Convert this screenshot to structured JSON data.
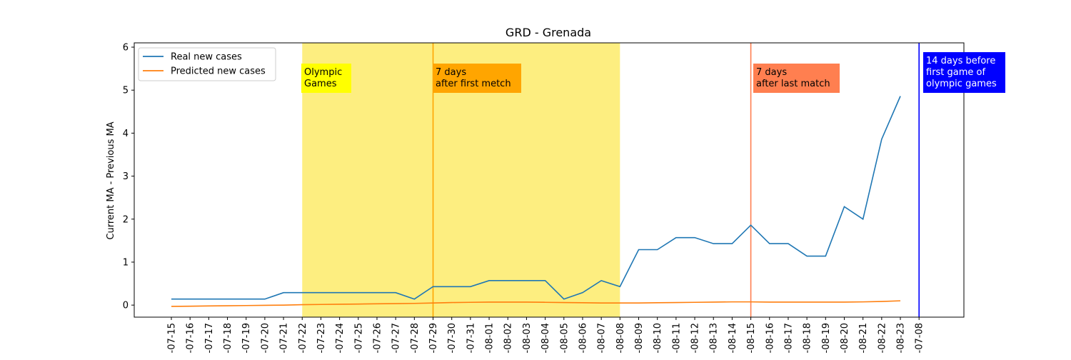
{
  "chart_data": {
    "type": "line",
    "title": "GRD - Grenada",
    "xlabel": "",
    "ylabel": "Current MA - Previous MA",
    "ylim": [
      -0.28,
      6.1
    ],
    "yticks": [
      0,
      1,
      2,
      3,
      4,
      5,
      6
    ],
    "grid": false,
    "legend_position": "top-left",
    "x": [
      "07-15",
      "07-16",
      "07-17",
      "07-18",
      "07-19",
      "07-20",
      "07-21",
      "07-22",
      "07-23",
      "07-24",
      "07-25",
      "07-26",
      "07-27",
      "07-28",
      "07-29",
      "07-30",
      "07-31",
      "08-01",
      "08-02",
      "08-03",
      "08-04",
      "08-05",
      "08-06",
      "08-07",
      "08-08",
      "08-09",
      "08-10",
      "08-11",
      "08-12",
      "08-13",
      "08-14",
      "08-15",
      "08-16",
      "08-17",
      "08-18",
      "08-19",
      "08-20",
      "08-21",
      "08-22",
      "08-23"
    ],
    "extra_tick": "07-08",
    "series": [
      {
        "name": "Real new cases",
        "color": "#1f77b4",
        "values": [
          0.14,
          0.14,
          0.14,
          0.14,
          0.14,
          0.14,
          0.29,
          0.29,
          0.29,
          0.29,
          0.29,
          0.29,
          0.29,
          0.14,
          0.43,
          0.43,
          0.43,
          0.57,
          0.57,
          0.57,
          0.57,
          0.14,
          0.29,
          0.57,
          0.43,
          1.29,
          1.29,
          1.57,
          1.57,
          1.43,
          1.43,
          1.86,
          1.43,
          1.43,
          1.14,
          1.14,
          2.29,
          2.0,
          3.86,
          4.86
        ]
      },
      {
        "name": "Predicted new cases",
        "color": "#ff7f0e",
        "values": [
          -0.03,
          -0.025,
          -0.02,
          -0.015,
          -0.01,
          -0.005,
          0.0,
          0.01,
          0.015,
          0.02,
          0.025,
          0.03,
          0.035,
          0.04,
          0.05,
          0.06,
          0.065,
          0.07,
          0.07,
          0.07,
          0.065,
          0.06,
          0.055,
          0.05,
          0.05,
          0.05,
          0.055,
          0.06,
          0.065,
          0.07,
          0.075,
          0.075,
          0.07,
          0.07,
          0.07,
          0.07,
          0.07,
          0.075,
          0.085,
          0.1
        ]
      }
    ],
    "span": {
      "start": "07-22",
      "end": "08-08",
      "color": "#fdee80"
    },
    "vlines": [
      {
        "at": "07-29",
        "color": "#ffa500"
      },
      {
        "at": "08-15",
        "color": "#ff7f50"
      },
      {
        "at": "07-08",
        "color": "#0000ff"
      }
    ],
    "annotations": [
      {
        "id": "olympic",
        "lines": [
          "Olympic",
          "Games"
        ],
        "bg": "#ffff00",
        "fg": "#000000"
      },
      {
        "id": "first",
        "lines": [
          "7 days",
          "after first metch"
        ],
        "bg": "#ffa500",
        "fg": "#000000"
      },
      {
        "id": "last",
        "lines": [
          "7 days",
          "after last match"
        ],
        "bg": "#ff7f50",
        "fg": "#000000"
      },
      {
        "id": "before",
        "lines": [
          "14 days before",
          "first game of",
          "olympic games"
        ],
        "bg": "#0000ff",
        "fg": "#ffffff"
      }
    ],
    "tick_prefix": "-",
    "year_tick_prefix": "-"
  }
}
